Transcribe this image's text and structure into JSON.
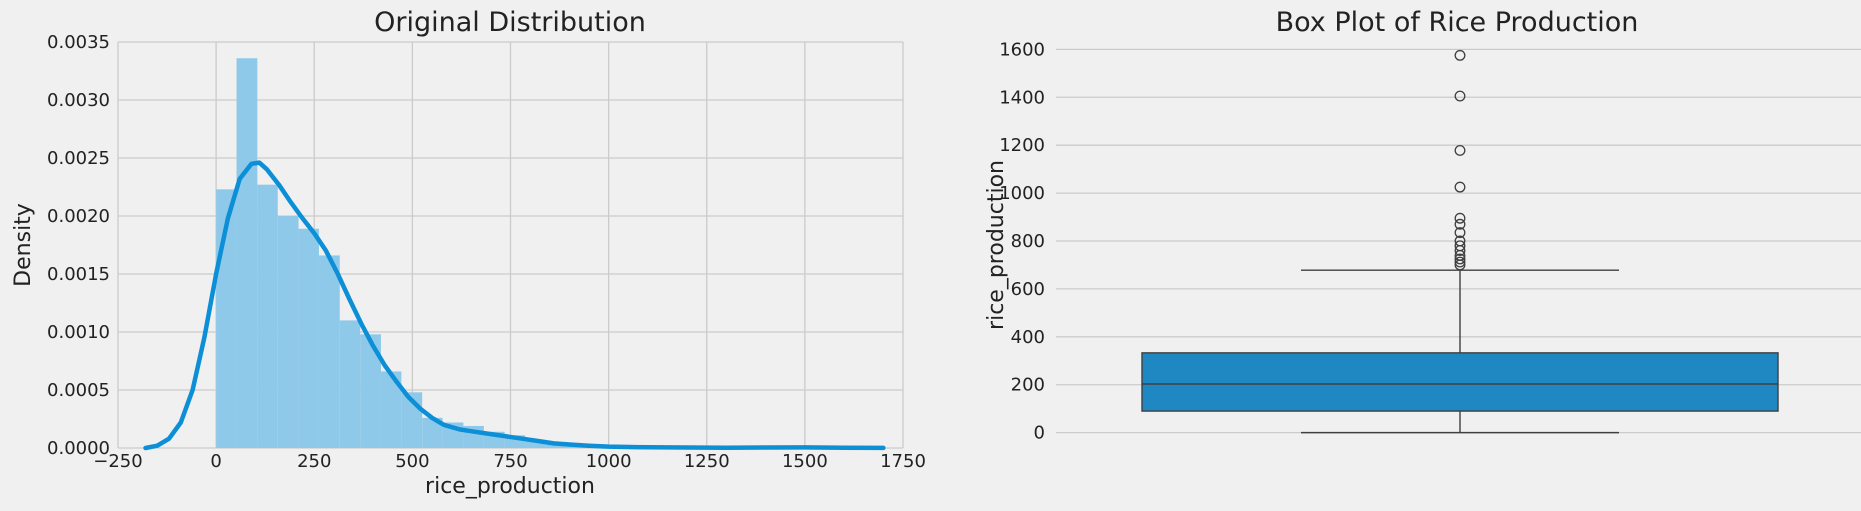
{
  "chart_data": [
    {
      "type": "histogram",
      "title": "Original Distribution",
      "xlabel": "rice_production",
      "ylabel": "Density",
      "xlim": [
        -250,
        1750
      ],
      "ylim": [
        0,
        0.0035
      ],
      "xticks": [
        -250,
        0,
        250,
        500,
        750,
        1000,
        1250,
        1500,
        1750
      ],
      "yticks": [
        0.0,
        0.0005,
        0.001,
        0.0015,
        0.002,
        0.0025,
        0.003,
        0.0035
      ],
      "xtick_labels": [
        "−250",
        "0",
        "250",
        "500",
        "750",
        "1000",
        "1250",
        "1500",
        "1750"
      ],
      "ytick_labels": [
        "0.0000",
        "0.0005",
        "0.0010",
        "0.0015",
        "0.0020",
        "0.0025",
        "0.0030",
        "0.0035"
      ],
      "grid": true,
      "bins": [
        {
          "x0": 0,
          "x1": 52,
          "density": 0.00223
        },
        {
          "x0": 52,
          "x1": 105,
          "density": 0.00336
        },
        {
          "x0": 105,
          "x1": 157,
          "density": 0.00227
        },
        {
          "x0": 157,
          "x1": 210,
          "density": 0.002
        },
        {
          "x0": 210,
          "x1": 262,
          "density": 0.00189
        },
        {
          "x0": 262,
          "x1": 315,
          "density": 0.00166
        },
        {
          "x0": 315,
          "x1": 367,
          "density": 0.0011
        },
        {
          "x0": 367,
          "x1": 420,
          "density": 0.00098
        },
        {
          "x0": 420,
          "x1": 472,
          "density": 0.00066
        },
        {
          "x0": 472,
          "x1": 525,
          "density": 0.00048
        },
        {
          "x0": 525,
          "x1": 577,
          "density": 0.00026
        },
        {
          "x0": 577,
          "x1": 630,
          "density": 0.00022
        },
        {
          "x0": 630,
          "x1": 682,
          "density": 0.00019
        },
        {
          "x0": 682,
          "x1": 735,
          "density": 0.00014
        },
        {
          "x0": 735,
          "x1": 787,
          "density": 0.00011
        },
        {
          "x0": 787,
          "x1": 840,
          "density": 7e-05
        },
        {
          "x0": 840,
          "x1": 892,
          "density": 5e-05
        },
        {
          "x0": 892,
          "x1": 945,
          "density": 3e-05
        },
        {
          "x0": 945,
          "x1": 997,
          "density": 2e-05
        },
        {
          "x0": 997,
          "x1": 1050,
          "density": 1e-05
        }
      ],
      "kde": {
        "x": [
          -180,
          -150,
          -120,
          -90,
          -60,
          -30,
          0,
          30,
          60,
          90,
          110,
          130,
          160,
          190,
          220,
          250,
          280,
          310,
          340,
          370,
          400,
          430,
          460,
          490,
          520,
          550,
          580,
          620,
          660,
          700,
          740,
          780,
          820,
          860,
          900,
          950,
          1000,
          1100,
          1200,
          1300,
          1400,
          1500,
          1600,
          1700
        ],
        "y": [
          0.0,
          2e-05,
          8e-05,
          0.00022,
          0.0005,
          0.00095,
          0.0015,
          0.00198,
          0.00232,
          0.00245,
          0.00246,
          0.0024,
          0.00227,
          0.00212,
          0.00198,
          0.00185,
          0.0017,
          0.0015,
          0.00128,
          0.00107,
          0.00088,
          0.00071,
          0.00057,
          0.00044,
          0.00034,
          0.00026,
          0.0002,
          0.00016,
          0.00014,
          0.00012,
          0.0001,
          8e-05,
          6e-05,
          4e-05,
          3e-05,
          2e-05,
          1.2e-05,
          6e-06,
          4e-06,
          3e-06,
          4e-06,
          5e-06,
          3e-06,
          1e-06
        ]
      },
      "colors": {
        "bars": "#8fc9e9",
        "kde": "#0c8fd6"
      }
    },
    {
      "type": "box",
      "title": "Box Plot of Rice Production",
      "ylabel": "rice_production",
      "ylim": [
        -60,
        1660
      ],
      "yticks": [
        0,
        200,
        400,
        600,
        800,
        1000,
        1200,
        1400,
        1600
      ],
      "ytick_labels": [
        "0",
        "200",
        "400",
        "600",
        "800",
        "1000",
        "1200",
        "1400",
        "1600"
      ],
      "grid": true,
      "box": {
        "whisker_low": 0,
        "q1": 90,
        "median": 203,
        "q3": 333,
        "whisker_high": 678
      },
      "outliers": [
        700,
        712,
        725,
        740,
        760,
        780,
        800,
        835,
        870,
        895,
        1025,
        1178,
        1405,
        1575
      ],
      "colors": {
        "box": "#1f88c2"
      }
    }
  ]
}
